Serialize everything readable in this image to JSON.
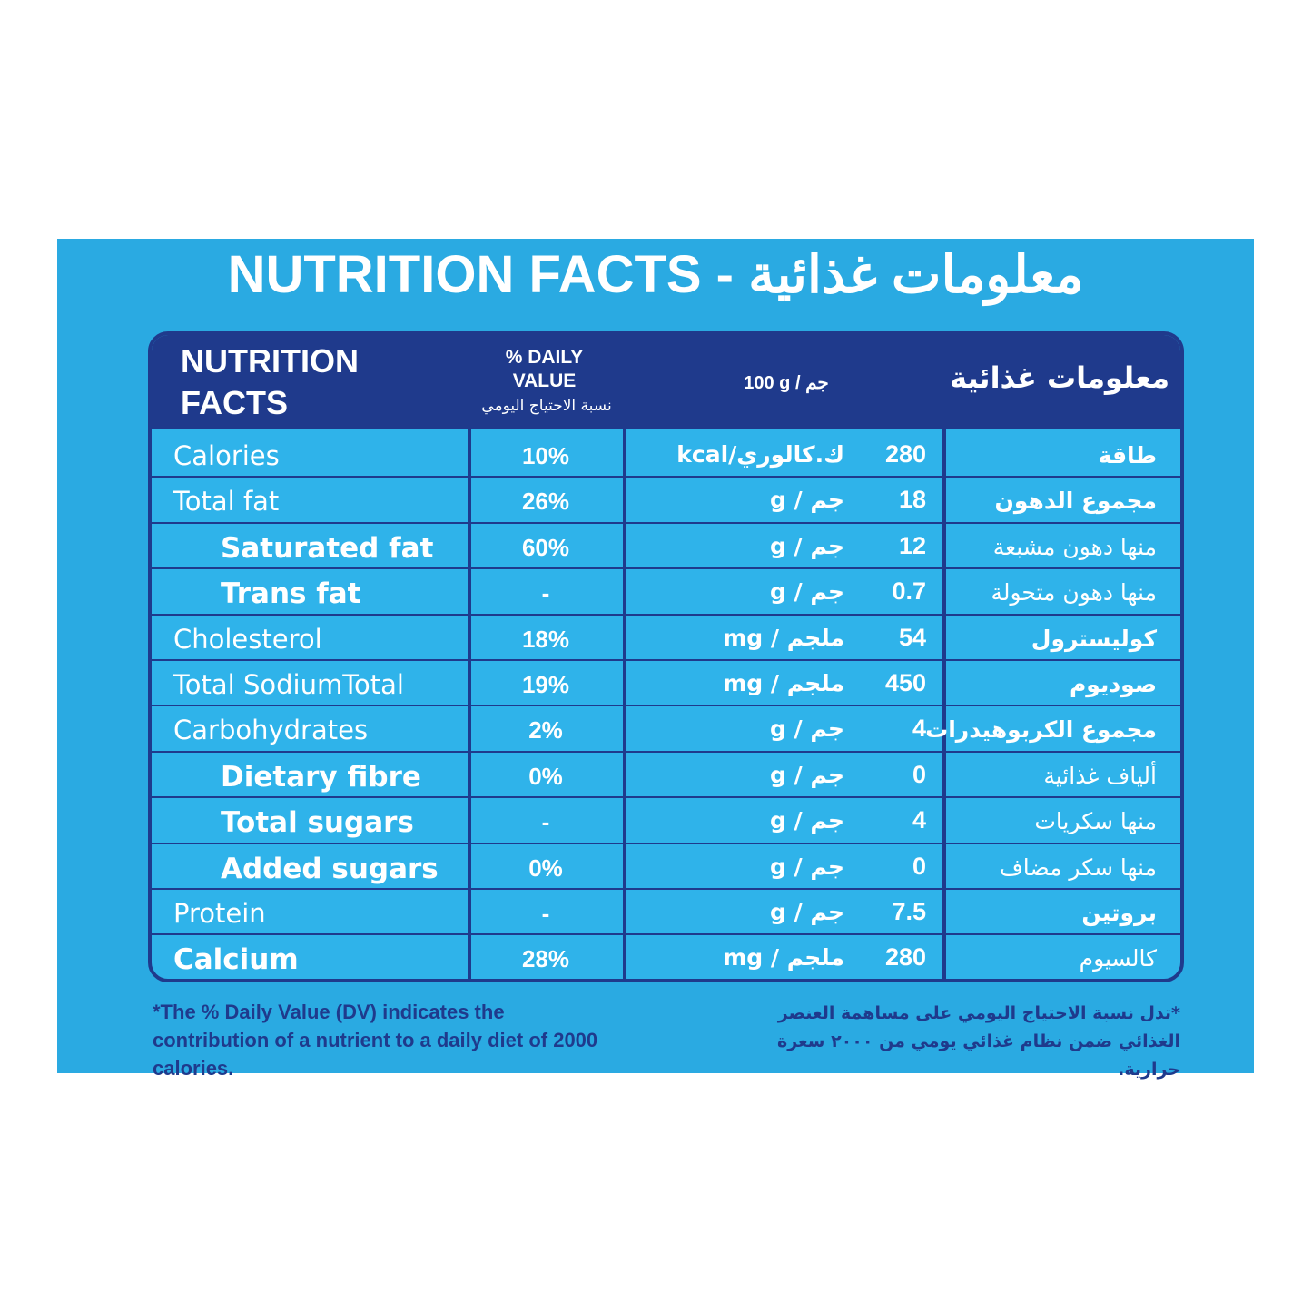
{
  "title": "NUTRITION FACTS - معلومات غذائية",
  "table": {
    "header": {
      "name": "NUTRITION FACTS",
      "daily_value": "% DAILY VALUE",
      "daily_value_ar": "نسبة الاحتياج اليومي",
      "per": "100 g / جم",
      "name_ar": "معلومات غذائية"
    },
    "rows": [
      {
        "name": "Calories",
        "dv": "10%",
        "amount": 280,
        "unit": "kcal/ك.كالوري",
        "name_ar": "طاقة"
      },
      {
        "name": "Total fat",
        "dv": "26%",
        "amount": 18,
        "unit": "g / جم",
        "name_ar": "مجموع الدهون"
      },
      {
        "name": "Saturated fat",
        "dv": "60%",
        "amount": 12,
        "unit": "g / جم",
        "name_ar": "منها دهون مشبعة"
      },
      {
        "name": "Trans fat",
        "dv": "-",
        "amount": 0.7,
        "unit": "g / جم",
        "name_ar": "منها دهون متحولة"
      },
      {
        "name": "Cholesterol",
        "dv": "18%",
        "amount": 54,
        "unit": "mg / ملجم",
        "name_ar": "كوليسترول"
      },
      {
        "name": "Total SodiumTotal",
        "dv": "19%",
        "amount": 450,
        "unit": "mg / ملجم",
        "name_ar": "صوديوم"
      },
      {
        "name": "Carbohydrates",
        "dv": "2%",
        "amount": 4,
        "unit": "g / جم",
        "name_ar": "مجموع الكربوهيدرات"
      },
      {
        "name": "Dietary fibre",
        "dv": "0%",
        "amount": 0,
        "unit": "g / جم",
        "name_ar": "ألياف غذائية"
      },
      {
        "name": "Total sugars",
        "dv": "-",
        "amount": 4,
        "unit": "g / جم",
        "name_ar": "منها سكريات"
      },
      {
        "name": "Added sugars",
        "dv": "0%",
        "amount": 0,
        "unit": "g / جم",
        "name_ar": "منها سكر مضاف"
      },
      {
        "name": "Protein",
        "dv": "-",
        "amount": 7.5,
        "unit": "g / جم",
        "name_ar": "بروتين"
      },
      {
        "name": "Calcium",
        "dv": "28%",
        "amount": 280,
        "unit": "mg / ملجم",
        "name_ar": "كالسيوم"
      }
    ]
  },
  "footnote": {
    "en": "*The % Daily Value (DV) indicates the contribution of a nutrient to a daily diet of 2000 calories.",
    "ar": "*تدل نسبة الاحتياج اليومي على مساهمة العنصر الغذائي ضمن نظام غذائي يومي من ٢٠٠٠ سعرة حرارية."
  }
}
